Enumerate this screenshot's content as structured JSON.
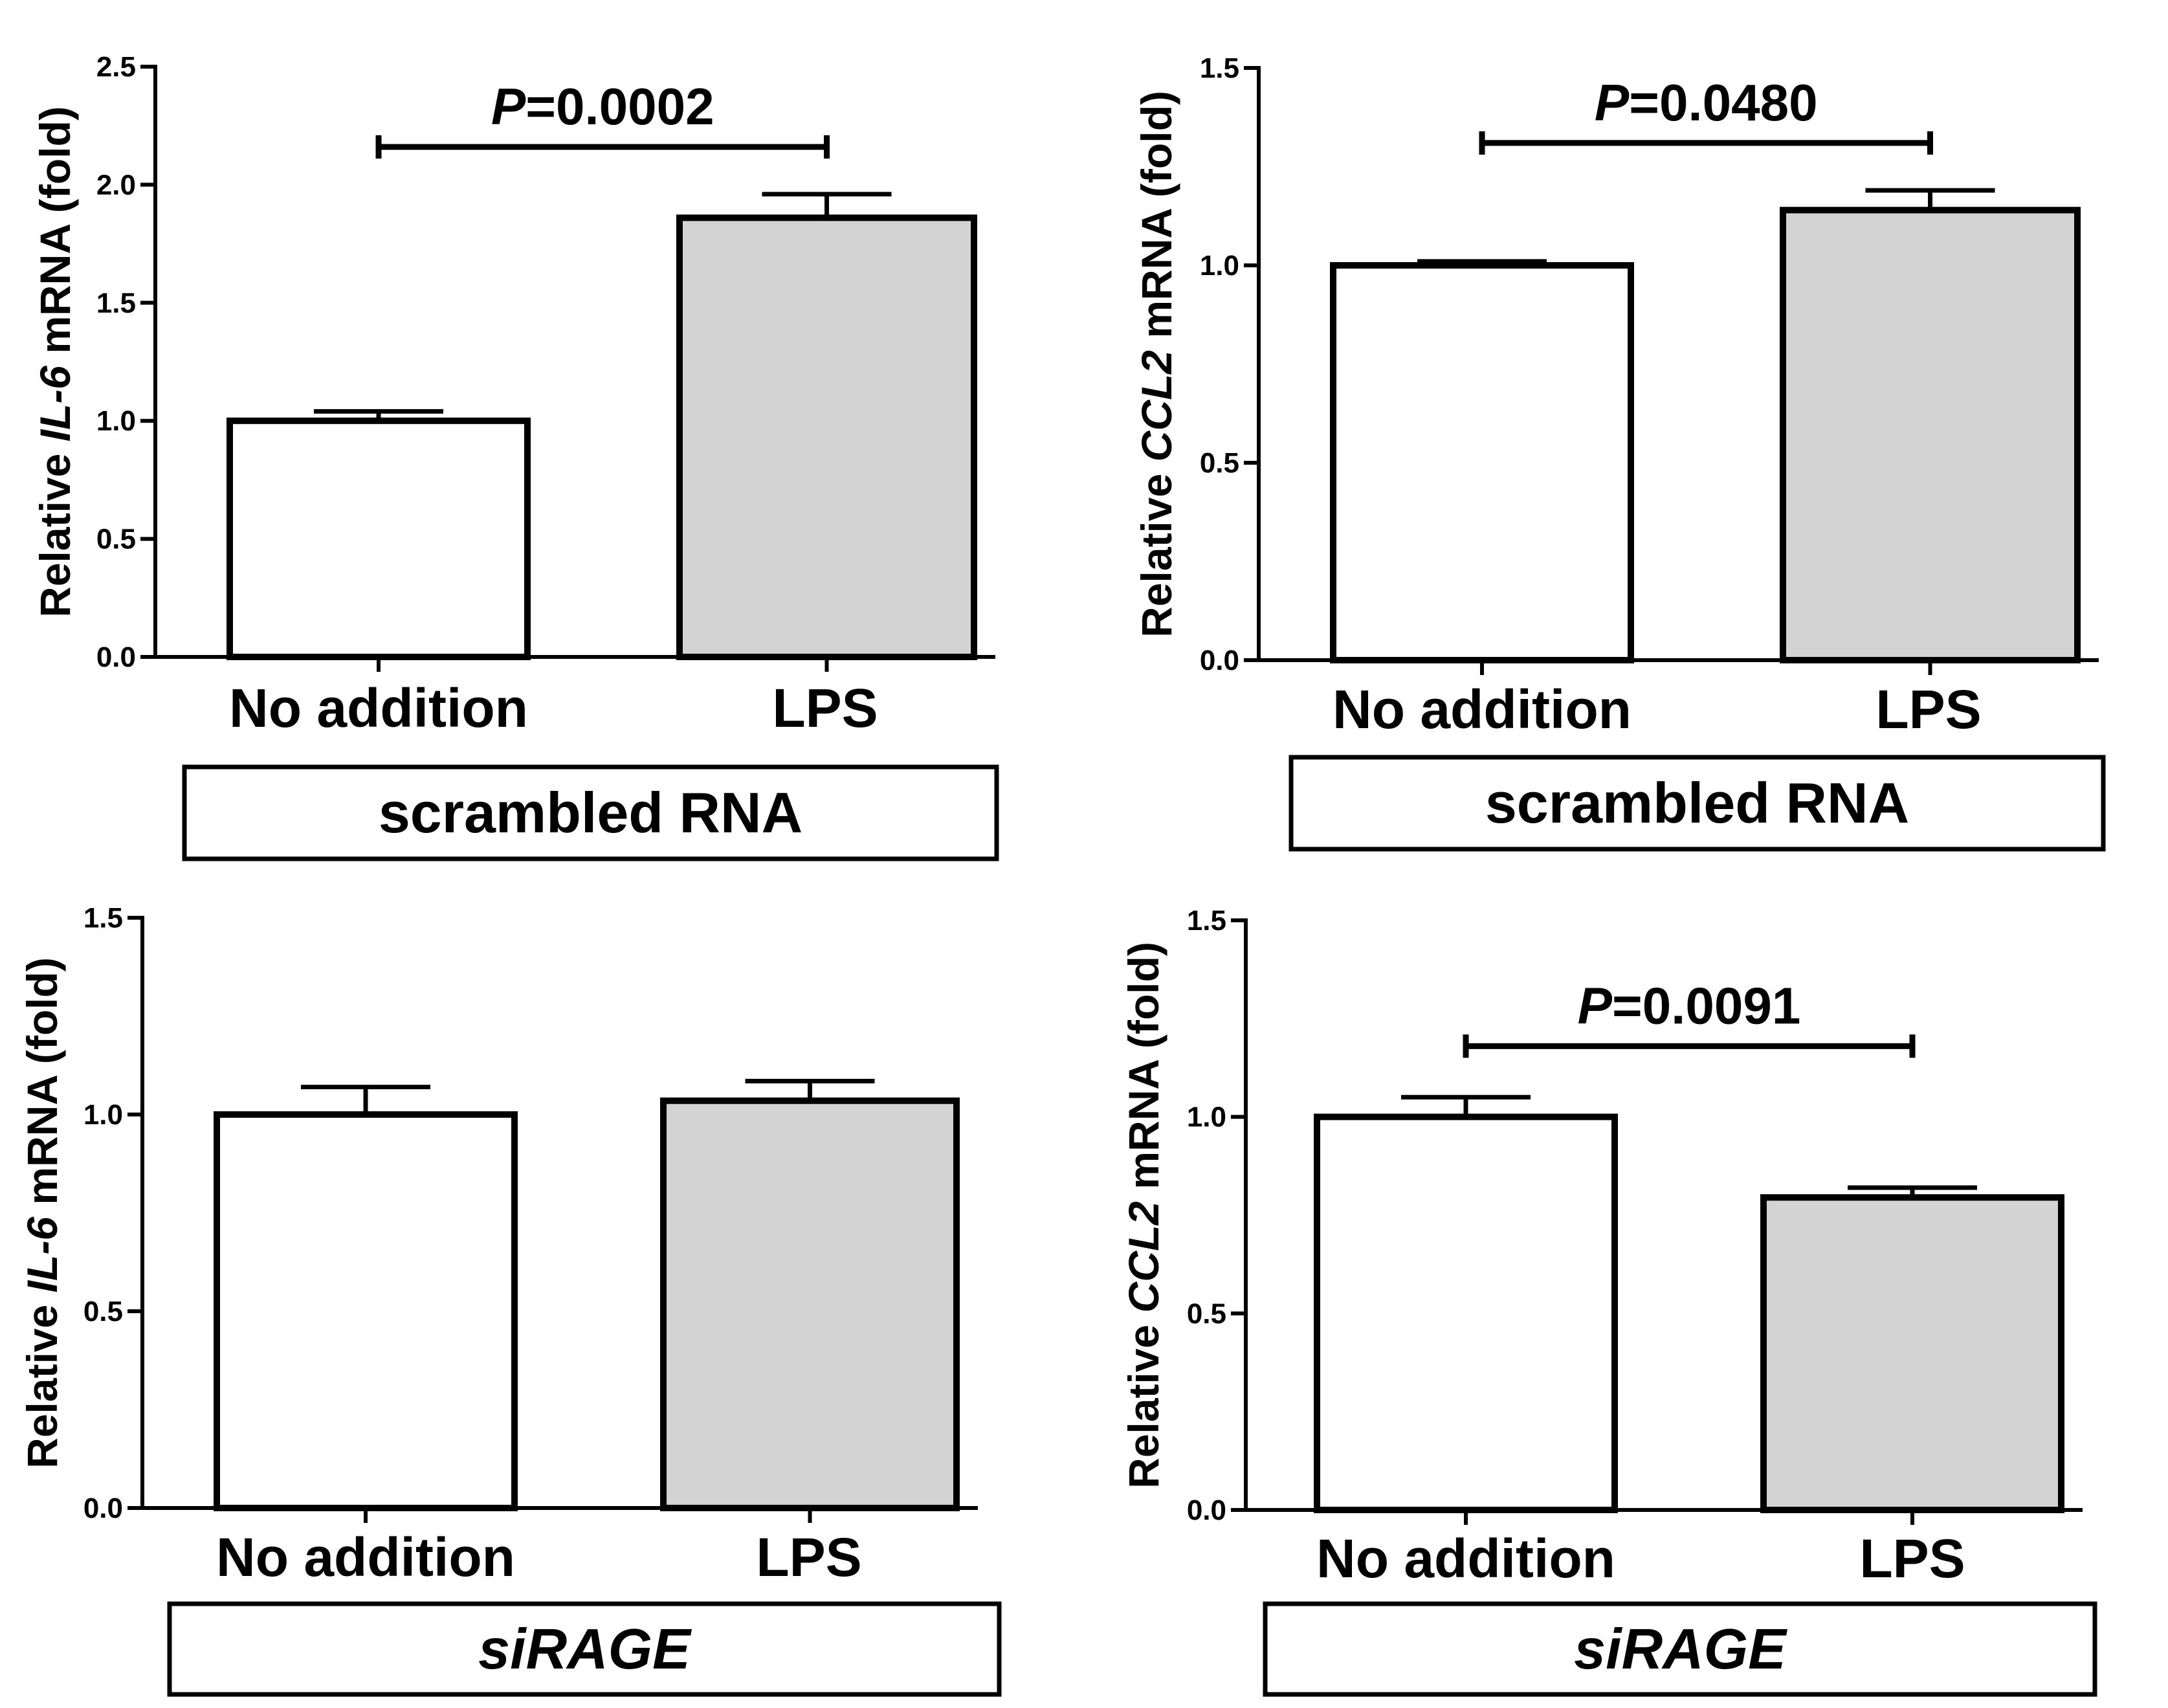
{
  "figure": {
    "background": "#ffffff"
  },
  "chart_data": [
    {
      "id": "panel-top-left",
      "type": "bar",
      "categories": [
        "No addition",
        "LPS"
      ],
      "values": [
        1.0,
        1.86
      ],
      "errors": [
        0.04,
        0.1
      ],
      "bar_colors": [
        "#ffffff",
        "#d3d3d3"
      ],
      "ylabel_pre": "Relative ",
      "ylabel_gene": "IL-6",
      "ylabel_post": " mRNA (fold)",
      "ylim": [
        0,
        2.5
      ],
      "yticks": [
        0.0,
        0.5,
        1.0,
        1.5,
        2.0,
        2.5
      ],
      "ytick_labels": [
        "0.0",
        "0.5",
        "1.0",
        "1.5",
        "2.0",
        "2.5"
      ],
      "pvalue": {
        "p_label": "P",
        "value_text": "=0.0002",
        "bracket_level": 2.16
      },
      "condition": {
        "label": "scrambled RNA",
        "italic": false
      }
    },
    {
      "id": "panel-top-right",
      "type": "bar",
      "categories": [
        "No addition",
        "LPS"
      ],
      "values": [
        1.0,
        1.14
      ],
      "errors": [
        0.01,
        0.05
      ],
      "bar_colors": [
        "#ffffff",
        "#d3d3d3"
      ],
      "ylabel_pre": "Relative ",
      "ylabel_gene": "CCL2",
      "ylabel_post": " mRNA (fold)",
      "ylim": [
        0,
        1.5
      ],
      "yticks": [
        0.0,
        0.5,
        1.0,
        1.5
      ],
      "ytick_labels": [
        "0.0",
        "0.5",
        "1.0",
        "1.5"
      ],
      "pvalue": {
        "p_label": "P",
        "value_text": "=0.0480",
        "bracket_level": 1.31
      },
      "condition": {
        "label": "scrambled RNA",
        "italic": false
      }
    },
    {
      "id": "panel-bottom-left",
      "type": "bar",
      "categories": [
        "No addition",
        "LPS"
      ],
      "values": [
        1.0,
        1.035
      ],
      "errors": [
        0.07,
        0.05
      ],
      "bar_colors": [
        "#ffffff",
        "#d3d3d3"
      ],
      "ylabel_pre": "Relative ",
      "ylabel_gene": "IL-6",
      "ylabel_post": " mRNA (fold)",
      "ylim": [
        0,
        1.5
      ],
      "yticks": [
        0.0,
        0.5,
        1.0,
        1.5
      ],
      "ytick_labels": [
        "0.0",
        "0.5",
        "1.0",
        "1.5"
      ],
      "pvalue": null,
      "condition": {
        "label": "siRAGE",
        "italic": true
      }
    },
    {
      "id": "panel-bottom-right",
      "type": "bar",
      "categories": [
        "No addition",
        "LPS"
      ],
      "values": [
        1.0,
        0.795
      ],
      "errors": [
        0.05,
        0.025
      ],
      "bar_colors": [
        "#ffffff",
        "#d3d3d3"
      ],
      "ylabel_pre": "Relative ",
      "ylabel_gene": "CCL2",
      "ylabel_post": " mRNA (fold)",
      "ylim": [
        0,
        1.5
      ],
      "yticks": [
        0.0,
        0.5,
        1.0,
        1.5
      ],
      "ytick_labels": [
        "0.0",
        "0.5",
        "1.0",
        "1.5"
      ],
      "pvalue": {
        "p_label": "P",
        "value_text": "=0.0091",
        "bracket_level": 1.18
      },
      "condition": {
        "label": "siRAGE",
        "italic": true
      }
    }
  ]
}
